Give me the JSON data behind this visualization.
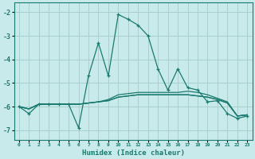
{
  "xlabel": "Humidex (Indice chaleur)",
  "bg_color": "#c8eaeb",
  "grid_color": "#aad0ce",
  "line_color": "#1a7a6e",
  "xlim": [
    -0.5,
    23.5
  ],
  "ylim": [
    -7.4,
    -1.6
  ],
  "yticks": [
    -7,
    -6,
    -5,
    -4,
    -3,
    -2
  ],
  "x": [
    0,
    1,
    2,
    3,
    4,
    5,
    6,
    7,
    8,
    9,
    10,
    11,
    12,
    13,
    14,
    15,
    16,
    17,
    18,
    19,
    20,
    21,
    22,
    23
  ],
  "main_series": [
    -6.0,
    -6.3,
    -5.9,
    -5.9,
    -5.9,
    -5.9,
    -6.9,
    -4.7,
    -3.3,
    -4.7,
    -2.1,
    -2.3,
    -2.55,
    -3.0,
    -4.4,
    -5.3,
    -4.4,
    -5.2,
    -5.3,
    -5.8,
    -5.75,
    -6.3,
    -6.5,
    -6.4
  ],
  "flat_series": [
    [
      -6.0,
      -6.1,
      -5.9,
      -5.9,
      -5.9,
      -5.9,
      -5.9,
      -5.85,
      -5.8,
      -5.75,
      -5.6,
      -5.55,
      -5.5,
      -5.5,
      -5.5,
      -5.5,
      -5.5,
      -5.5,
      -5.55,
      -5.6,
      -5.7,
      -5.85,
      -6.4,
      -6.35
    ],
    [
      -6.0,
      -6.1,
      -5.9,
      -5.9,
      -5.9,
      -5.9,
      -5.9,
      -5.85,
      -5.8,
      -5.75,
      -5.6,
      -5.55,
      -5.5,
      -5.5,
      -5.5,
      -5.5,
      -5.5,
      -5.5,
      -5.55,
      -5.6,
      -5.7,
      -5.85,
      -6.4,
      -6.35
    ],
    [
      -6.0,
      -6.1,
      -5.9,
      -5.9,
      -5.9,
      -5.9,
      -5.9,
      -5.85,
      -5.8,
      -5.7,
      -5.5,
      -5.45,
      -5.4,
      -5.4,
      -5.4,
      -5.4,
      -5.4,
      -5.35,
      -5.4,
      -5.5,
      -5.65,
      -5.8,
      -6.4,
      -6.35
    ]
  ]
}
